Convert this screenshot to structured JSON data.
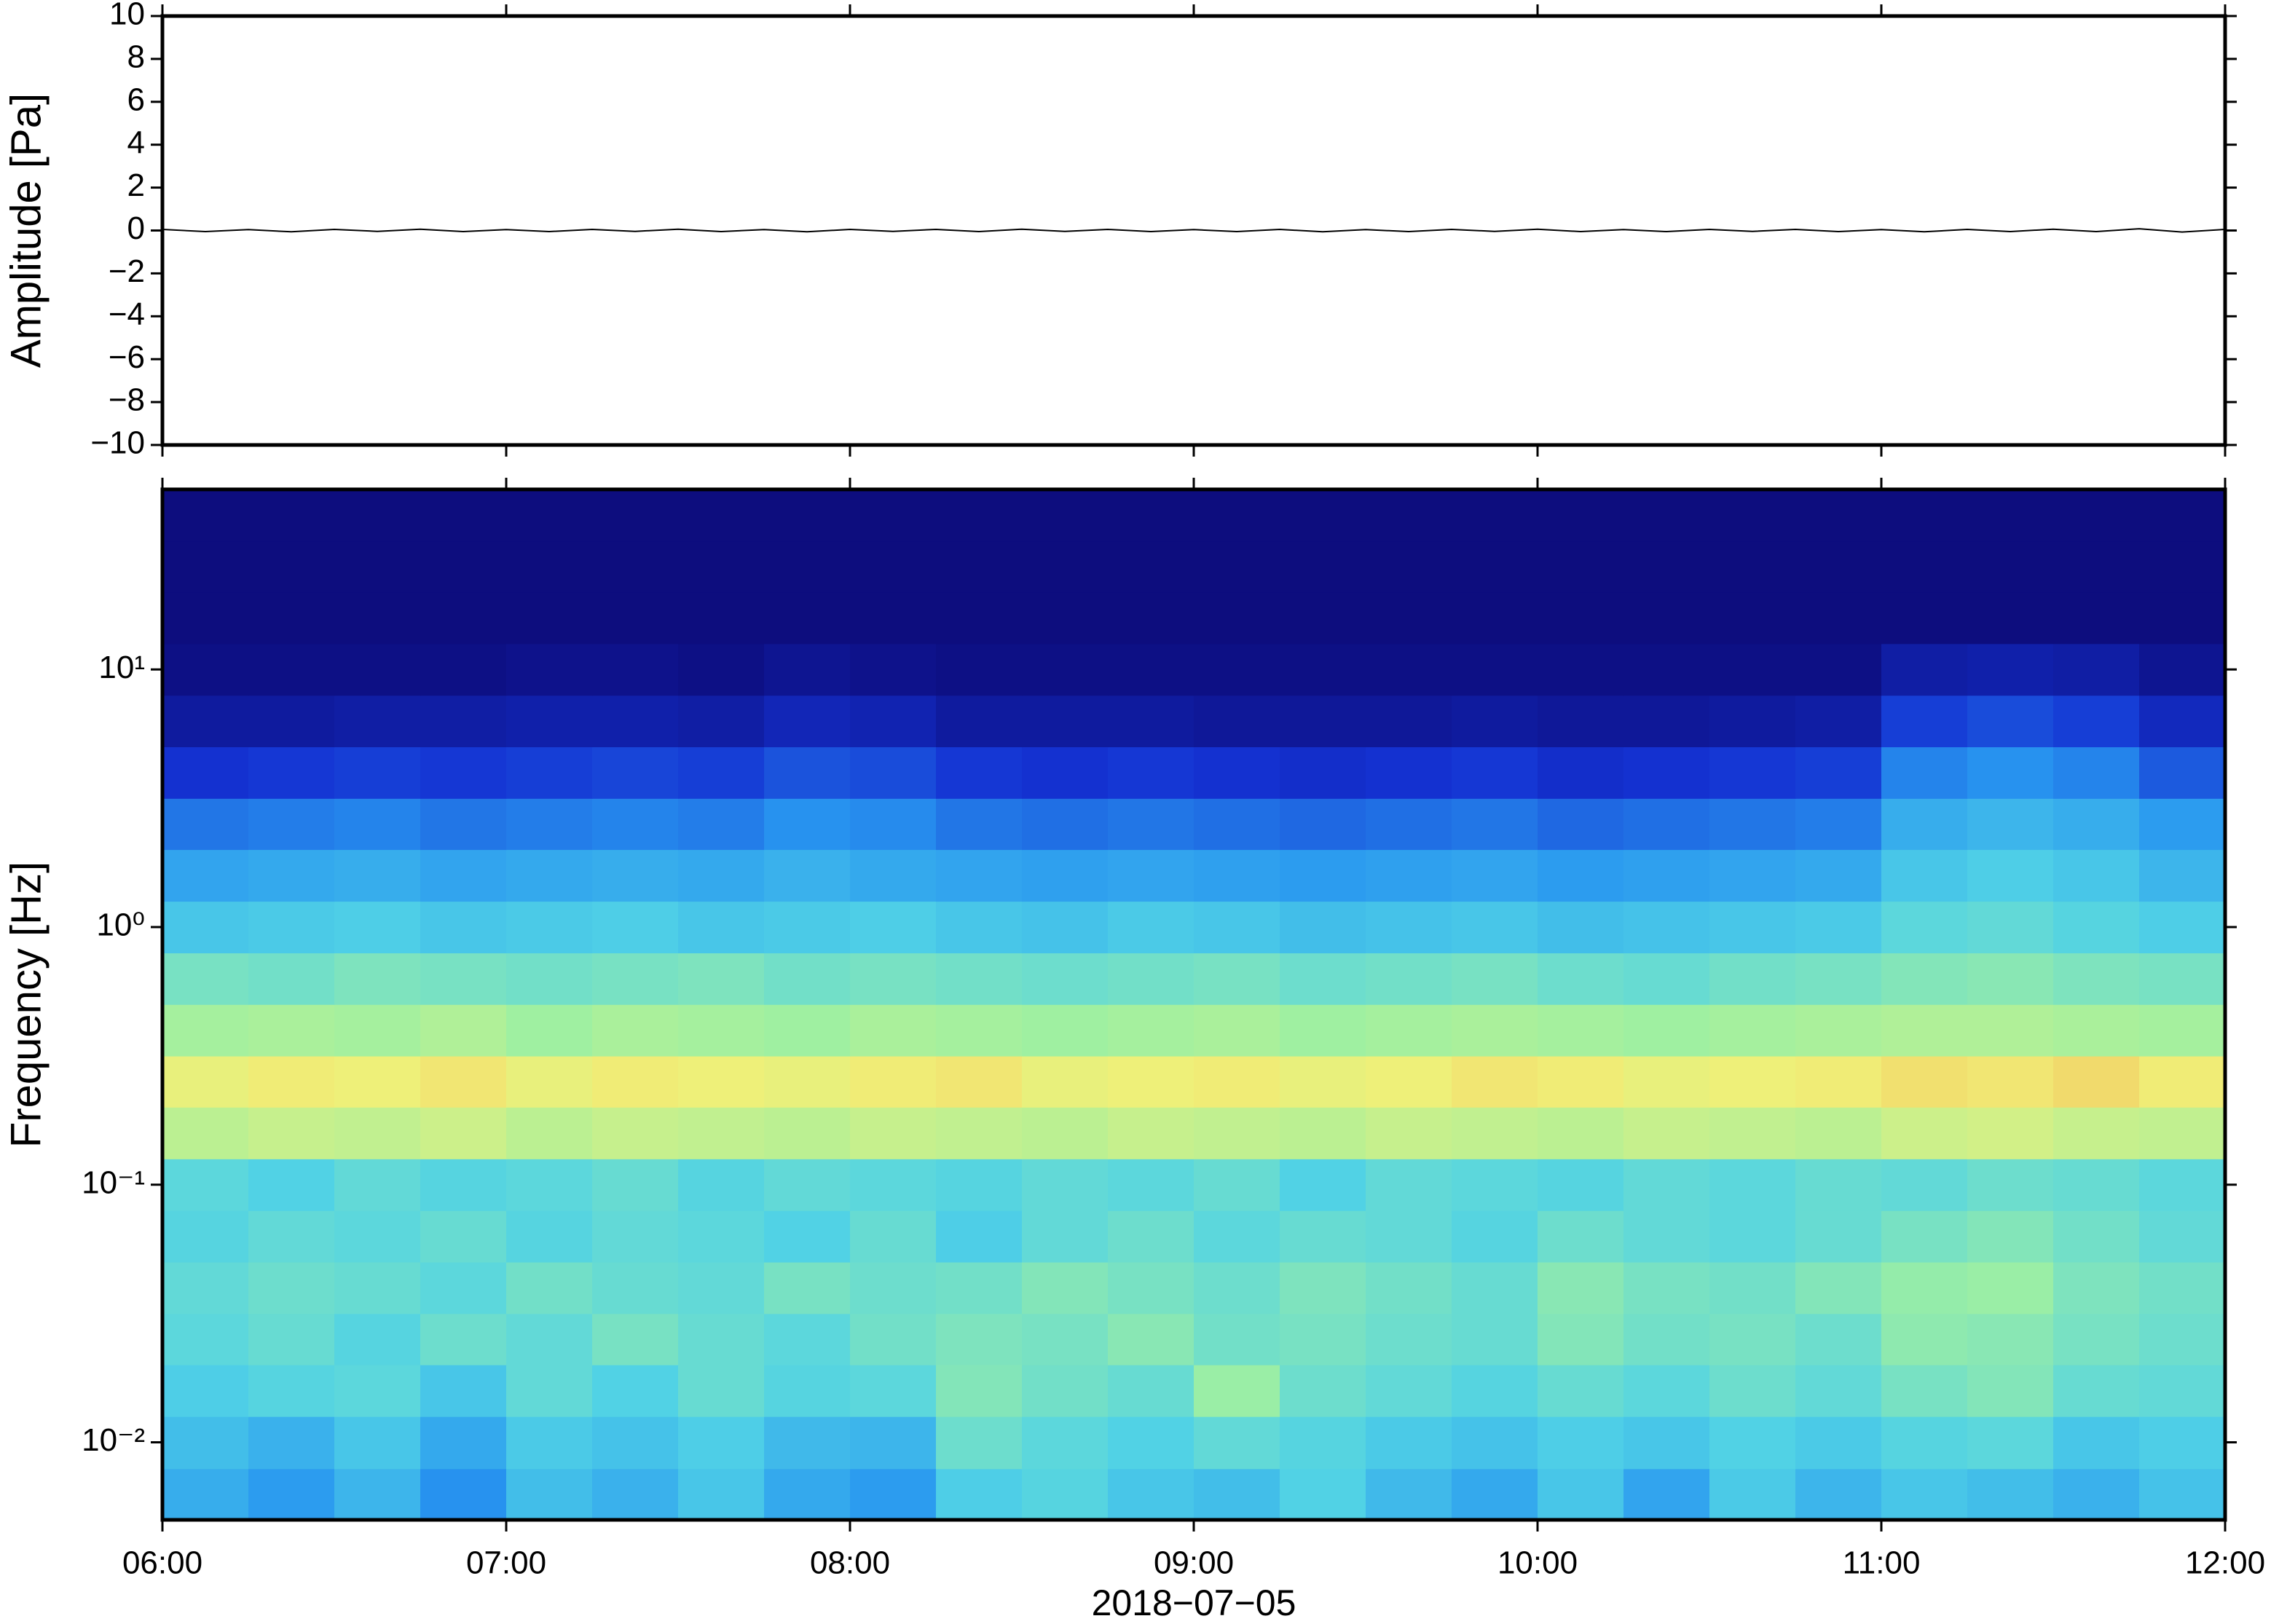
{
  "chart_data": [
    {
      "type": "line",
      "ylabel": "Amplitude [Pa]",
      "xlim": [
        6,
        12
      ],
      "xticks": [
        6,
        7,
        8,
        9,
        10,
        11,
        12
      ],
      "ylim": [
        -10,
        10
      ],
      "yticks": [
        {
          "value": -10,
          "label": "−10"
        },
        {
          "value": -8,
          "label": "−8"
        },
        {
          "value": -6,
          "label": "−6"
        },
        {
          "value": -4,
          "label": "−4"
        },
        {
          "value": -2,
          "label": "−2"
        },
        0,
        2,
        4,
        6,
        8,
        10
      ],
      "series": [
        {
          "color": "#000000",
          "x": [
            6,
            6.125,
            6.25,
            6.375,
            6.5,
            6.625,
            6.75,
            6.875,
            7,
            7.125,
            7.25,
            7.375,
            7.5,
            7.625,
            7.75,
            7.875,
            8,
            8.125,
            8.25,
            8.375,
            8.5,
            8.625,
            8.75,
            8.875,
            9,
            9.125,
            9.25,
            9.375,
            9.5,
            9.625,
            9.75,
            9.875,
            10,
            10.125,
            10.25,
            10.375,
            10.5,
            10.625,
            10.75,
            10.875,
            11,
            11.125,
            11.25,
            11.375,
            11.5,
            11.625,
            11.75,
            11.875,
            12
          ],
          "values": [
            0.05,
            -0.05,
            0.04,
            -0.06,
            0.05,
            -0.04,
            0.06,
            -0.05,
            0.04,
            -0.05,
            0.05,
            -0.04,
            0.06,
            -0.05,
            0.04,
            -0.06,
            0.05,
            -0.04,
            0.05,
            -0.05,
            0.06,
            -0.04,
            0.05,
            -0.05,
            0.04,
            -0.05,
            0.05,
            -0.06,
            0.04,
            -0.05,
            0.05,
            -0.04,
            0.06,
            -0.05,
            0.04,
            -0.05,
            0.05,
            -0.04,
            0.05,
            -0.05,
            0.04,
            -0.06,
            0.05,
            -0.05,
            0.06,
            -0.05,
            0.08,
            -0.07,
            0.05
          ]
        }
      ]
    },
    {
      "type": "heatmap",
      "xlabel": "2018−07−05",
      "ylabel": "Frequency [Hz]",
      "xlim": [
        6,
        12
      ],
      "xticks": [
        {
          "value": 6,
          "label": "06:00"
        },
        {
          "value": 7,
          "label": "07:00"
        },
        {
          "value": 8,
          "label": "08:00"
        },
        {
          "value": 9,
          "label": "09:00"
        },
        {
          "value": 10,
          "label": "10:00"
        },
        {
          "value": 11,
          "label": "11:00"
        },
        {
          "value": 12,
          "label": "12:00"
        }
      ],
      "ylim": [
        0.005,
        50
      ],
      "ylog": true,
      "yticks": [
        {
          "value": 0.01,
          "label": "10⁻²"
        },
        {
          "value": 0.1,
          "label": "10⁻¹"
        },
        {
          "value": 1,
          "label": "10⁰"
        },
        {
          "value": 10,
          "label": "10¹"
        }
      ],
      "zlim": [
        0,
        1
      ],
      "colormap": [
        "#0c0a78",
        "#1432d2",
        "#2896f0",
        "#50d2e6",
        "#a0f0a0",
        "#f0f078",
        "#f59646",
        "#d23c28"
      ],
      "x_bins": [
        6,
        6.25,
        6.5,
        6.75,
        7,
        7.25,
        7.5,
        7.75,
        8,
        8.25,
        8.5,
        8.75,
        9,
        9.25,
        9.5,
        9.75,
        10,
        10.25,
        10.5,
        10.75,
        11,
        11.25,
        11.5,
        11.75,
        12
      ],
      "y_bins": [
        0.005,
        0.0079,
        0.0126,
        0.02,
        0.0316,
        0.0501,
        0.0794,
        0.126,
        0.2,
        0.316,
        0.501,
        0.794,
        1.26,
        2,
        3.16,
        5.01,
        7.94,
        12.6,
        20,
        31.6,
        50
      ],
      "z": [
        [
          0.34,
          0.3,
          0.36,
          0.28,
          0.38,
          0.35,
          0.4,
          0.33,
          0.3,
          0.42,
          0.44,
          0.4,
          0.38,
          0.43,
          0.37,
          0.33,
          0.4,
          0.32,
          0.41,
          0.36,
          0.4,
          0.38,
          0.35,
          0.39
        ],
        [
          0.38,
          0.35,
          0.4,
          0.33,
          0.41,
          0.39,
          0.42,
          0.37,
          0.36,
          0.48,
          0.45,
          0.43,
          0.46,
          0.44,
          0.41,
          0.39,
          0.42,
          0.4,
          0.43,
          0.41,
          0.44,
          0.45,
          0.4,
          0.42
        ],
        [
          0.42,
          0.44,
          0.45,
          0.4,
          0.46,
          0.43,
          0.47,
          0.44,
          0.45,
          0.52,
          0.49,
          0.47,
          0.56,
          0.48,
          0.46,
          0.44,
          0.47,
          0.45,
          0.48,
          0.46,
          0.5,
          0.52,
          0.47,
          0.46
        ],
        [
          0.45,
          0.47,
          0.44,
          0.48,
          0.46,
          0.5,
          0.47,
          0.45,
          0.49,
          0.51,
          0.5,
          0.53,
          0.49,
          0.5,
          0.48,
          0.47,
          0.52,
          0.49,
          0.5,
          0.48,
          0.54,
          0.53,
          0.5,
          0.48
        ],
        [
          0.46,
          0.48,
          0.47,
          0.45,
          0.49,
          0.47,
          0.46,
          0.5,
          0.48,
          0.49,
          0.52,
          0.5,
          0.48,
          0.51,
          0.49,
          0.47,
          0.53,
          0.5,
          0.49,
          0.52,
          0.55,
          0.56,
          0.51,
          0.49
        ],
        [
          0.44,
          0.46,
          0.45,
          0.47,
          0.44,
          0.46,
          0.45,
          0.43,
          0.47,
          0.42,
          0.46,
          0.48,
          0.45,
          0.47,
          0.46,
          0.44,
          0.48,
          0.46,
          0.45,
          0.47,
          0.5,
          0.52,
          0.49,
          0.46
        ],
        [
          0.45,
          0.43,
          0.46,
          0.44,
          0.45,
          0.47,
          0.44,
          0.46,
          0.45,
          0.44,
          0.46,
          0.45,
          0.47,
          0.43,
          0.46,
          0.45,
          0.44,
          0.46,
          0.45,
          0.47,
          0.46,
          0.48,
          0.47,
          0.45
        ],
        [
          0.62,
          0.64,
          0.63,
          0.65,
          0.62,
          0.64,
          0.63,
          0.62,
          0.64,
          0.63,
          0.62,
          0.64,
          0.63,
          0.62,
          0.64,
          0.63,
          0.62,
          0.64,
          0.63,
          0.62,
          0.65,
          0.66,
          0.64,
          0.63
        ],
        [
          0.7,
          0.72,
          0.71,
          0.73,
          0.7,
          0.72,
          0.71,
          0.7,
          0.72,
          0.73,
          0.7,
          0.71,
          0.72,
          0.7,
          0.71,
          0.73,
          0.72,
          0.7,
          0.71,
          0.72,
          0.74,
          0.73,
          0.75,
          0.72
        ],
        [
          0.58,
          0.59,
          0.58,
          0.6,
          0.57,
          0.59,
          0.58,
          0.57,
          0.59,
          0.58,
          0.57,
          0.58,
          0.59,
          0.57,
          0.58,
          0.59,
          0.58,
          0.57,
          0.58,
          0.59,
          0.6,
          0.6,
          0.59,
          0.58
        ],
        [
          0.5,
          0.49,
          0.51,
          0.5,
          0.49,
          0.5,
          0.51,
          0.49,
          0.5,
          0.49,
          0.48,
          0.49,
          0.5,
          0.48,
          0.49,
          0.5,
          0.48,
          0.47,
          0.49,
          0.5,
          0.52,
          0.53,
          0.51,
          0.5
        ],
        [
          0.4,
          0.41,
          0.42,
          0.4,
          0.41,
          0.42,
          0.4,
          0.41,
          0.42,
          0.4,
          0.39,
          0.41,
          0.4,
          0.38,
          0.39,
          0.4,
          0.38,
          0.39,
          0.4,
          0.41,
          0.45,
          0.46,
          0.44,
          0.42
        ],
        [
          0.32,
          0.33,
          0.34,
          0.32,
          0.33,
          0.34,
          0.33,
          0.35,
          0.33,
          0.32,
          0.31,
          0.32,
          0.31,
          0.3,
          0.31,
          0.32,
          0.3,
          0.31,
          0.32,
          0.33,
          0.4,
          0.42,
          0.4,
          0.36
        ],
        [
          0.24,
          0.25,
          0.26,
          0.24,
          0.25,
          0.26,
          0.25,
          0.28,
          0.27,
          0.24,
          0.23,
          0.24,
          0.23,
          0.22,
          0.23,
          0.24,
          0.22,
          0.23,
          0.24,
          0.25,
          0.34,
          0.36,
          0.34,
          0.3
        ],
        [
          0.14,
          0.15,
          0.16,
          0.15,
          0.16,
          0.17,
          0.16,
          0.19,
          0.18,
          0.15,
          0.14,
          0.15,
          0.14,
          0.13,
          0.14,
          0.15,
          0.13,
          0.14,
          0.15,
          0.16,
          0.26,
          0.28,
          0.26,
          0.2
        ],
        [
          0.06,
          0.06,
          0.07,
          0.07,
          0.08,
          0.08,
          0.07,
          0.1,
          0.09,
          0.06,
          0.06,
          0.06,
          0.05,
          0.05,
          0.05,
          0.06,
          0.05,
          0.05,
          0.06,
          0.07,
          0.16,
          0.18,
          0.16,
          0.11
        ],
        [
          0.02,
          0.02,
          0.02,
          0.02,
          0.03,
          0.03,
          0.02,
          0.04,
          0.03,
          0.02,
          0.02,
          0.02,
          0.02,
          0.02,
          0.02,
          0.02,
          0.02,
          0.02,
          0.02,
          0.02,
          0.07,
          0.08,
          0.07,
          0.04
        ],
        [
          0.01,
          0.01,
          0.01,
          0.01,
          0.01,
          0.01,
          0.01,
          0.01,
          0.01,
          0.01,
          0.01,
          0.01,
          0.01,
          0.01,
          0.01,
          0.01,
          0.01,
          0.01,
          0.01,
          0.01,
          0.01,
          0.01,
          0.01,
          0.01
        ],
        [
          0.01,
          0.01,
          0.01,
          0.01,
          0.01,
          0.01,
          0.01,
          0.01,
          0.01,
          0.01,
          0.01,
          0.01,
          0.01,
          0.01,
          0.01,
          0.01,
          0.01,
          0.01,
          0.01,
          0.01,
          0.01,
          0.01,
          0.01,
          0.01
        ],
        [
          0.01,
          0.01,
          0.01,
          0.01,
          0.01,
          0.01,
          0.01,
          0.01,
          0.01,
          0.01,
          0.01,
          0.01,
          0.01,
          0.01,
          0.01,
          0.01,
          0.01,
          0.01,
          0.01,
          0.01,
          0.01,
          0.01,
          0.01,
          0.01
        ]
      ]
    }
  ]
}
